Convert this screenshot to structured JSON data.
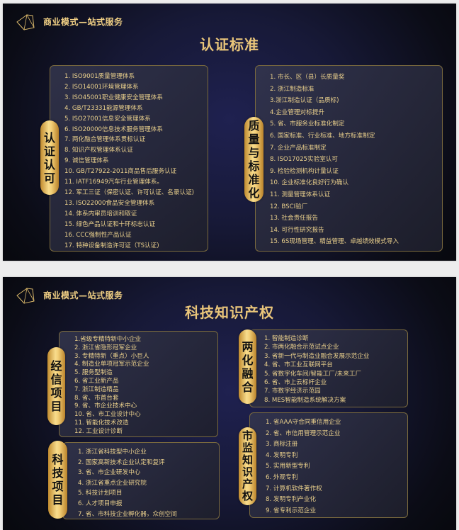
{
  "brand": "商业模式—站式服务",
  "colors": {
    "gold": "#e9c57a",
    "background": "#171937",
    "pill": "#f3cf78"
  },
  "slides": [
    {
      "title": "认证标准",
      "groups": [
        {
          "label": "认证认可",
          "items": [
            "1. ISO9001质量管理体系",
            "2. ISO14001环境管理体系",
            "3. ISO45001职业健康安全管理体系",
            "4. GB/T23331能源管理体系",
            "5. ISO27001信息安全管理体系",
            "6. ISO20000信息技术服务管理体系",
            "7. 两化融合管理体系贯标认证",
            "8. 知识产权管理体系认证",
            "9. 诚信管理体系",
            "10. GB/T27922-2011商品售后服务认证",
            "11. IATF16949汽车行业管理体系。",
            "12. 军工三证（保密认证、许可认证、名录认证)",
            "13. ISO22000食品安全管理体系",
            "14. 体系内审员培训和取证",
            "15. 绿色产品认证和十环标志认证",
            "16. CCC强制性产品认证",
            "17. 特种设备制造许可证（TS认证)"
          ]
        },
        {
          "label": "质量与标准化",
          "items": [
            "1. 市长、区（县）长质量奖",
            "2. 浙江制造标准",
            "3.浙江制造认证（品质标)",
            "4.企业管理对标提升",
            "5. 省、市服务业标准化制定",
            "6. 国家标准、行业标准、地方标准制定",
            "7. 企业产品标准制定",
            "8. ISO17025实验室认可",
            "9. 检验检测机构计量认证",
            "10. 企业标准化良好行为确认",
            "11. 测量管理体系认证",
            "12. BSCI验厂",
            "13. 社会责任报告",
            "14. 可行性研究报告",
            "15. 6S现场管理、精益管理、卓越绩效模式导入"
          ]
        }
      ]
    },
    {
      "title": "科技知识产权",
      "groups": [
        {
          "label": "经信项目",
          "items": [
            "1.省级专精特新中小企业",
            "2. 浙江省隐形冠军企业",
            "3. 专精特新（重点）小巨人",
            "4. 制造业单项冠军示范企业",
            "5. 服务型制造",
            "6. 省工业新产品",
            "7. 浙江制造精品",
            "8. 省、市首台套",
            "9. 省、市企业技术中心",
            "10. 省、市工业设计中心",
            "11. 智能化技术改造",
            "12. 工业设计诊断"
          ]
        },
        {
          "label": "科技项目",
          "items": [
            "1. 浙江省科技型中小企业",
            "2. 国家高新技术企业认定和复评",
            "3. 省、市企业研发中心",
            "4. 浙江省重点企业研究院",
            "5. 科技计划项目",
            "6. 人才项目申报",
            "7. 省、市科技企业孵化器，众创空间"
          ]
        },
        {
          "label": "两化融合",
          "items": [
            "1. 智能制造诊断",
            "2. 市两化融合示范试点企业",
            "3. 省新一代与制造业融合发展示范企业",
            "4. 省、市工业互联网平台",
            "5. 省数字化车间/智能工厂/未来工厂",
            "6. 省、市上云标杆企业",
            "7. 市数字经济示范园",
            "8. MES智能制造系统解决方案"
          ]
        },
        {
          "label": "市监知识产权",
          "items": [
            "1. 省AAA守合同重信用企业",
            "2. 省、市信用管理示范企业",
            "3. 商标注册",
            "4. 发明专利",
            "5. 实用新型专利",
            "6. 外观专利",
            "7. 计算机软件著作权",
            "8. 发明专利产业化",
            "9. 省专利示范企业"
          ]
        }
      ]
    }
  ]
}
